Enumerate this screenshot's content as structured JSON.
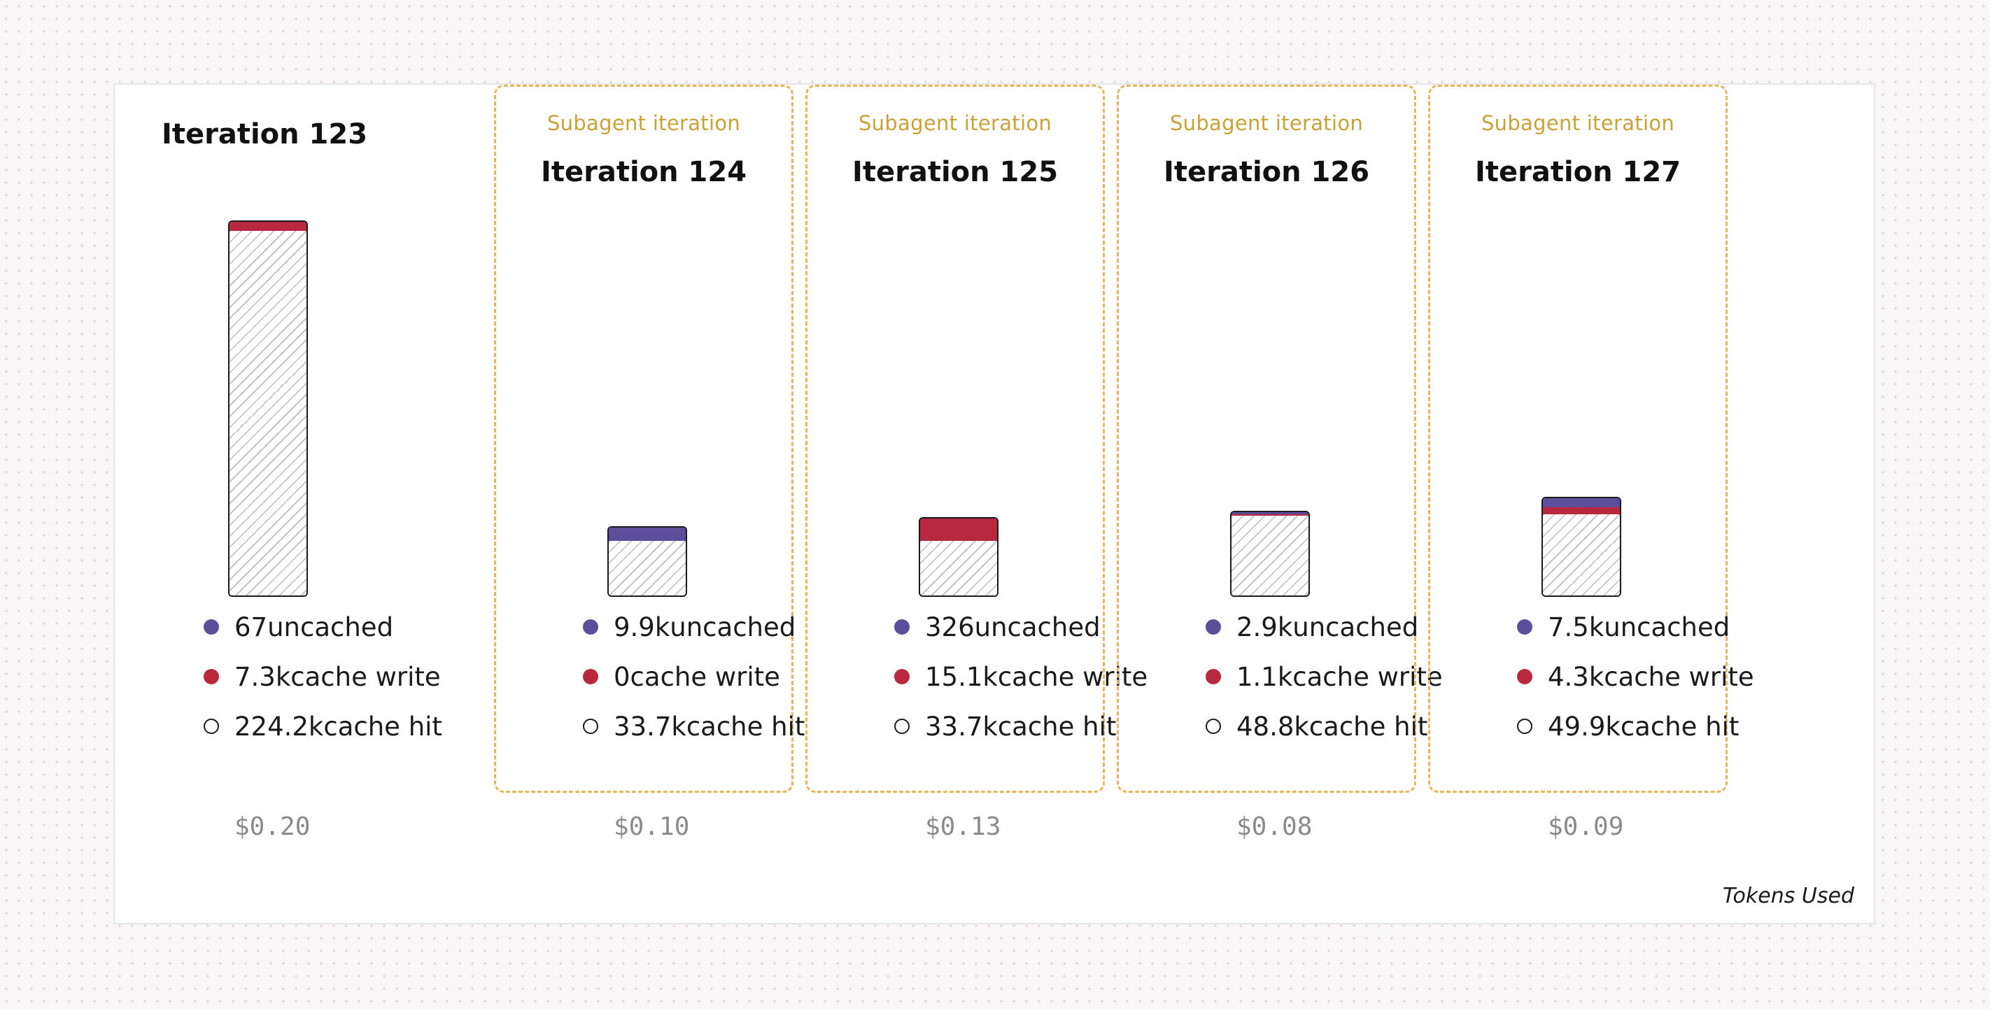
{
  "chart_data": {
    "type": "bar",
    "stacked": true,
    "categories": [
      "Iteration 123",
      "Iteration 124",
      "Iteration 125",
      "Iteration 126",
      "Iteration 127"
    ],
    "subagent_flags": [
      false,
      true,
      true,
      true,
      true
    ],
    "subagent_label": "Subagent iteration",
    "series": [
      {
        "name": "cache hit",
        "values": [
          224200,
          33700,
          33700,
          48800,
          49900
        ],
        "labels": [
          "224.2k",
          "33.7k",
          "33.7k",
          "48.8k",
          "49.9k"
        ],
        "color": "#ffffff",
        "pattern": "hatched"
      },
      {
        "name": "cache write",
        "values": [
          7300,
          0,
          15100,
          1100,
          4300
        ],
        "labels": [
          "7.3k",
          "0",
          "15.1k",
          "1.1k",
          "4.3k"
        ],
        "color": "#b8293f"
      },
      {
        "name": "uncached",
        "values": [
          67,
          9900,
          326,
          2900,
          7500
        ],
        "labels": [
          "67",
          "9.9k",
          "326",
          "2.9k",
          "7.5k"
        ],
        "color": "#5d4e9c"
      }
    ],
    "costs": [
      "$0.20",
      "$0.10",
      "$0.13",
      "$0.08",
      "$0.09"
    ],
    "label": "Tokens Used",
    "grid": false
  },
  "colors": {
    "uncached": "#5d4e9c",
    "cache_write": "#b8293f",
    "subagent_border": "#e4b85e",
    "subagent_text": "#c9a237"
  }
}
